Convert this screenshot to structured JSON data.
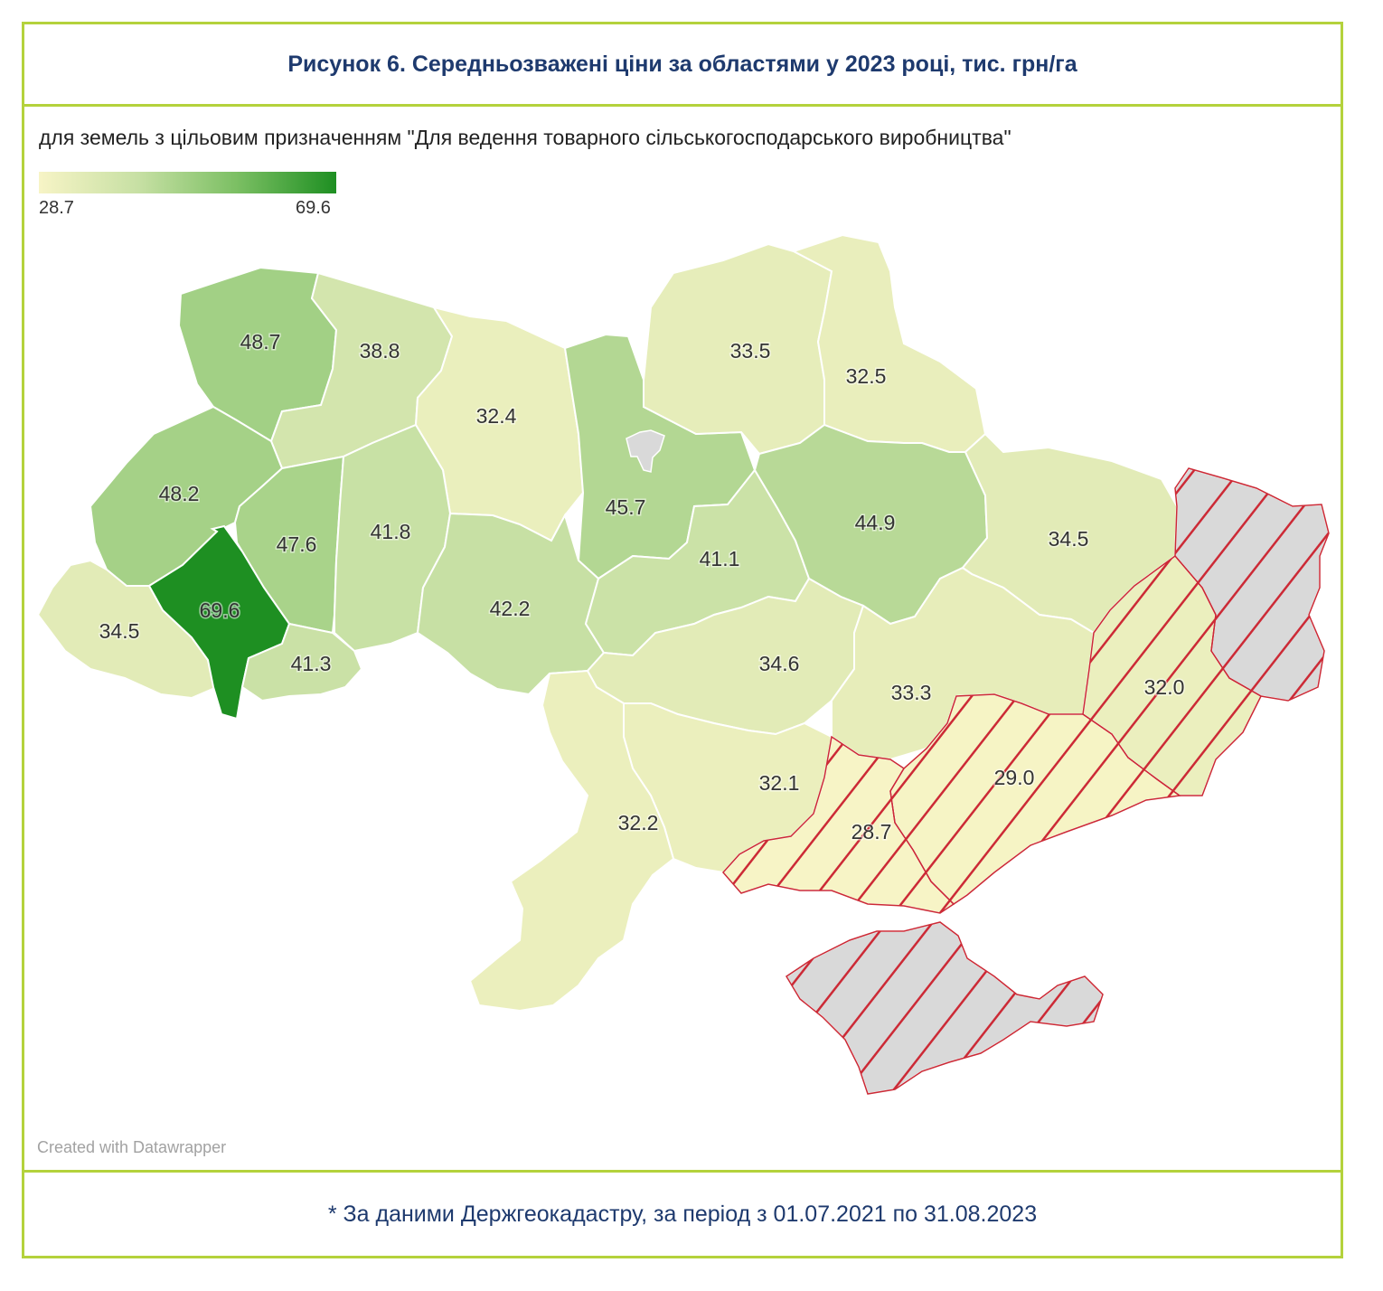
{
  "title": "Рисунок 6. Середньозважені ціни за областями у 2023 році, тис. грн/га",
  "subtitle": "для земель з цільовим призначенням \"Для ведення товарного сільськогосподарського виробництва\"",
  "legend": {
    "min": "28.7",
    "max": "69.6",
    "color_min": "#f7f4c6",
    "color_max": "#1e8f22"
  },
  "credit": "Created with Datawrapper",
  "footnote": "* За даними Держгеокадастру, за період з 01.07.2021  по 31.08.2023",
  "colors": {
    "frame": "#b4d23c",
    "title": "#1e3a6e",
    "hatch": "#cc2a36",
    "no_data": "#d9d9d9"
  },
  "regions": [
    {
      "id": "volyn",
      "value": "48.7"
    },
    {
      "id": "rivne",
      "value": "38.8"
    },
    {
      "id": "zhytomyr",
      "value": "32.4"
    },
    {
      "id": "kyiv",
      "value": "45.7"
    },
    {
      "id": "chernihiv",
      "value": "33.5"
    },
    {
      "id": "sumy",
      "value": "32.5"
    },
    {
      "id": "lviv",
      "value": "48.2"
    },
    {
      "id": "ternopil",
      "value": "47.6"
    },
    {
      "id": "khmelnytskyi",
      "value": "41.8"
    },
    {
      "id": "vinnytsia",
      "value": "42.2"
    },
    {
      "id": "cherkasy",
      "value": "41.1"
    },
    {
      "id": "poltava",
      "value": "44.9"
    },
    {
      "id": "kharkiv",
      "value": "34.5"
    },
    {
      "id": "zakarpattia",
      "value": "34.5"
    },
    {
      "id": "ivano-frankivsk",
      "value": "69.6"
    },
    {
      "id": "chernivtsi",
      "value": "41.3"
    },
    {
      "id": "kirovohrad",
      "value": "34.6"
    },
    {
      "id": "dnipropetrovsk",
      "value": "33.3"
    },
    {
      "id": "donetsk",
      "value": "32.0"
    },
    {
      "id": "zaporizhzhia",
      "value": "29.0"
    },
    {
      "id": "kherson",
      "value": "28.7"
    },
    {
      "id": "mykolaiv",
      "value": "32.1"
    },
    {
      "id": "odesa",
      "value": "32.2"
    },
    {
      "id": "luhansk",
      "value": ""
    },
    {
      "id": "crimea",
      "value": ""
    }
  ]
}
